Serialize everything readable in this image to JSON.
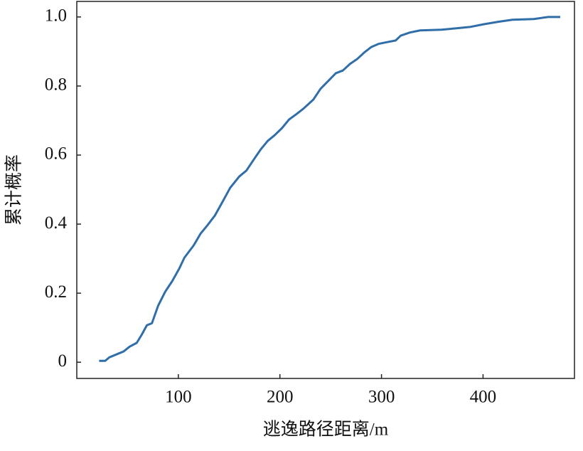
{
  "chart_data": {
    "type": "line",
    "x_label": "逃逸路径距离/m",
    "y_label": "累计概率",
    "x": [
      22,
      28,
      32,
      41,
      46,
      52,
      59,
      64,
      69,
      74,
      80,
      87,
      94,
      101,
      106,
      115,
      122,
      129,
      136,
      143,
      151,
      160,
      167,
      174,
      181,
      188,
      195,
      202,
      209,
      216,
      223,
      233,
      240,
      248,
      255,
      262,
      269,
      276,
      283,
      290,
      297,
      307,
      314,
      319,
      328,
      338,
      359,
      373,
      387,
      401,
      415,
      429,
      450,
      464,
      476
    ],
    "series": [
      {
        "color": "#2f6ea8",
        "values": [
          0.004,
          0.004,
          0.014,
          0.025,
          0.031,
          0.045,
          0.056,
          0.08,
          0.107,
          0.113,
          0.163,
          0.204,
          0.235,
          0.272,
          0.303,
          0.338,
          0.373,
          0.398,
          0.425,
          0.462,
          0.505,
          0.538,
          0.555,
          0.586,
          0.616,
          0.641,
          0.658,
          0.678,
          0.703,
          0.718,
          0.734,
          0.761,
          0.792,
          0.816,
          0.837,
          0.845,
          0.864,
          0.878,
          0.897,
          0.913,
          0.922,
          0.928,
          0.932,
          0.946,
          0.955,
          0.961,
          0.963,
          0.967,
          0.971,
          0.979,
          0.986,
          0.992,
          0.994,
          1.0,
          1.0
        ]
      }
    ],
    "xlim": [
      0,
      490
    ],
    "xticks": [
      100,
      200,
      300,
      400
    ],
    "ylim": [
      -0.047,
      1.045
    ],
    "yticks": [
      0,
      0.2,
      0.4,
      0.6,
      0.8,
      {
        "value": 1,
        "label": "1.0"
      }
    ],
    "grid": false
  }
}
